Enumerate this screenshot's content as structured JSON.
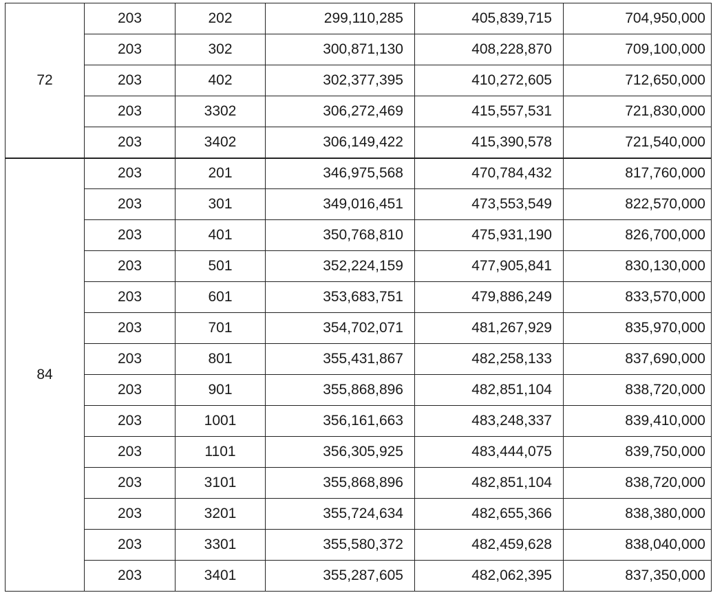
{
  "groups": [
    {
      "area": "72",
      "rows": [
        {
          "dong": "203",
          "ho": "202",
          "land": "299,110,285",
          "building": "405,839,715",
          "total": "704,950,000"
        },
        {
          "dong": "203",
          "ho": "302",
          "land": "300,871,130",
          "building": "408,228,870",
          "total": "709,100,000"
        },
        {
          "dong": "203",
          "ho": "402",
          "land": "302,377,395",
          "building": "410,272,605",
          "total": "712,650,000"
        },
        {
          "dong": "203",
          "ho": "3302",
          "land": "306,272,469",
          "building": "415,557,531",
          "total": "721,830,000"
        },
        {
          "dong": "203",
          "ho": "3402",
          "land": "306,149,422",
          "building": "415,390,578",
          "total": "721,540,000"
        }
      ]
    },
    {
      "area": "84",
      "rows": [
        {
          "dong": "203",
          "ho": "201",
          "land": "346,975,568",
          "building": "470,784,432",
          "total": "817,760,000"
        },
        {
          "dong": "203",
          "ho": "301",
          "land": "349,016,451",
          "building": "473,553,549",
          "total": "822,570,000"
        },
        {
          "dong": "203",
          "ho": "401",
          "land": "350,768,810",
          "building": "475,931,190",
          "total": "826,700,000"
        },
        {
          "dong": "203",
          "ho": "501",
          "land": "352,224,159",
          "building": "477,905,841",
          "total": "830,130,000"
        },
        {
          "dong": "203",
          "ho": "601",
          "land": "353,683,751",
          "building": "479,886,249",
          "total": "833,570,000"
        },
        {
          "dong": "203",
          "ho": "701",
          "land": "354,702,071",
          "building": "481,267,929",
          "total": "835,970,000"
        },
        {
          "dong": "203",
          "ho": "801",
          "land": "355,431,867",
          "building": "482,258,133",
          "total": "837,690,000"
        },
        {
          "dong": "203",
          "ho": "901",
          "land": "355,868,896",
          "building": "482,851,104",
          "total": "838,720,000"
        },
        {
          "dong": "203",
          "ho": "1001",
          "land": "356,161,663",
          "building": "483,248,337",
          "total": "839,410,000"
        },
        {
          "dong": "203",
          "ho": "1101",
          "land": "356,305,925",
          "building": "483,444,075",
          "total": "839,750,000"
        },
        {
          "dong": "203",
          "ho": "3101",
          "land": "355,868,896",
          "building": "482,851,104",
          "total": "838,720,000"
        },
        {
          "dong": "203",
          "ho": "3201",
          "land": "355,724,634",
          "building": "482,655,366",
          "total": "838,380,000"
        },
        {
          "dong": "203",
          "ho": "3301",
          "land": "355,580,372",
          "building": "482,459,628",
          "total": "838,040,000"
        },
        {
          "dong": "203",
          "ho": "3401",
          "land": "355,287,605",
          "building": "482,062,395",
          "total": "837,350,000"
        }
      ]
    }
  ]
}
